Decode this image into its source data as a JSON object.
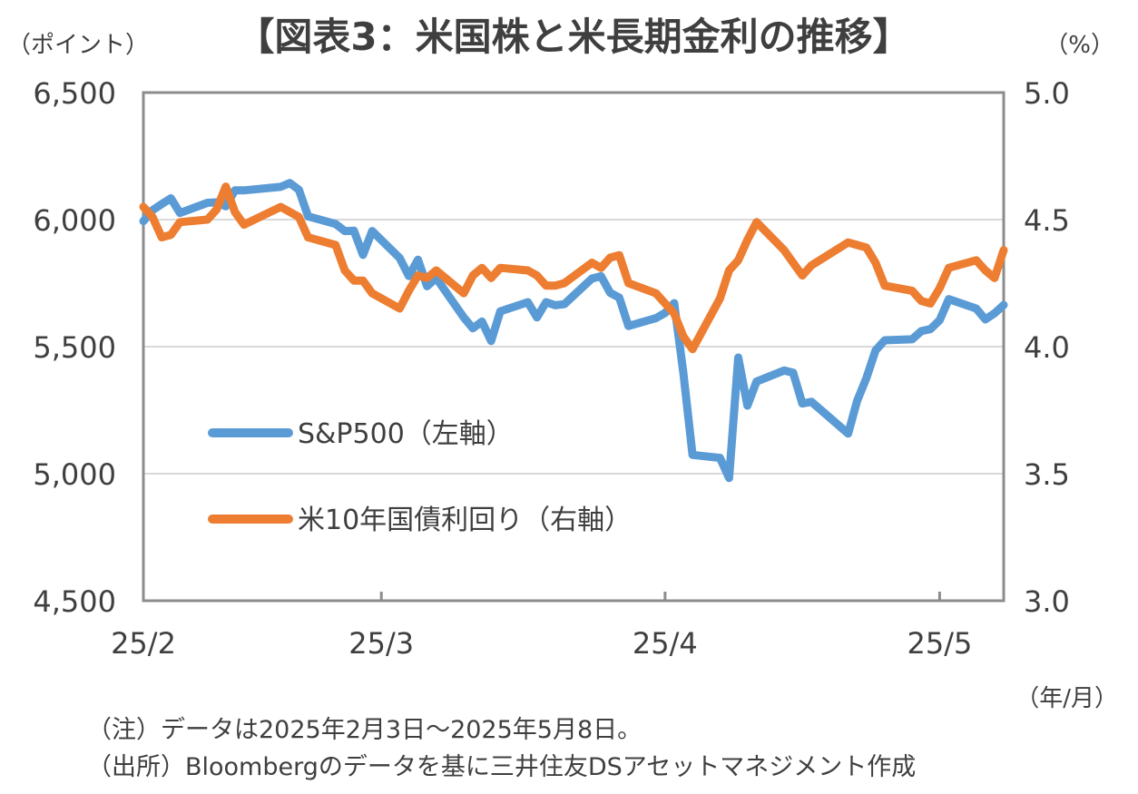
{
  "chart_data": {
    "type": "line",
    "title": "【図表3：米国株と米長期金利の推移】",
    "left_axis_unit": "（ポイント）",
    "right_axis_unit": "（%）",
    "x_unit": "（年/月）",
    "left_ylim": [
      4500,
      6500
    ],
    "right_ylim": [
      3.0,
      5.0
    ],
    "left_ticks": [
      "6,500",
      "6,000",
      "5,500",
      "5,000",
      "4,500"
    ],
    "right_ticks": [
      "5.0",
      "4.5",
      "4.0",
      "3.5",
      "3.0"
    ],
    "x_ticks": [
      "25/2",
      "25/3",
      "25/4",
      "25/5"
    ],
    "x_range": [
      "2025-02-03",
      "2025-05-08"
    ],
    "grid": "horizontal",
    "legend_position": "lower-left inside plot",
    "series": [
      {
        "name": "S&P500（左軸）",
        "axis": "left",
        "color": "#5b9bd5",
        "points": [
          [
            "2025-02-03",
            5994
          ],
          [
            "2025-02-04",
            6037
          ],
          [
            "2025-02-05",
            6061
          ],
          [
            "2025-02-06",
            6084
          ],
          [
            "2025-02-07",
            6026
          ],
          [
            "2025-02-10",
            6066
          ],
          [
            "2025-02-11",
            6068
          ],
          [
            "2025-02-12",
            6052
          ],
          [
            "2025-02-13",
            6115
          ],
          [
            "2025-02-14",
            6115
          ],
          [
            "2025-02-18",
            6129
          ],
          [
            "2025-02-19",
            6144
          ],
          [
            "2025-02-20",
            6117
          ],
          [
            "2025-02-21",
            6013
          ],
          [
            "2025-02-24",
            5983
          ],
          [
            "2025-02-25",
            5955
          ],
          [
            "2025-02-26",
            5956
          ],
          [
            "2025-02-27",
            5861
          ],
          [
            "2025-02-28",
            5955
          ],
          [
            "2025-03-03",
            5849
          ],
          [
            "2025-03-04",
            5778
          ],
          [
            "2025-03-05",
            5842
          ],
          [
            "2025-03-06",
            5738
          ],
          [
            "2025-03-07",
            5770
          ],
          [
            "2025-03-10",
            5615
          ],
          [
            "2025-03-11",
            5572
          ],
          [
            "2025-03-12",
            5599
          ],
          [
            "2025-03-13",
            5522
          ],
          [
            "2025-03-14",
            5639
          ],
          [
            "2025-03-17",
            5675
          ],
          [
            "2025-03-18",
            5615
          ],
          [
            "2025-03-19",
            5675
          ],
          [
            "2025-03-20",
            5663
          ],
          [
            "2025-03-21",
            5667
          ],
          [
            "2025-03-24",
            5768
          ],
          [
            "2025-03-25",
            5777
          ],
          [
            "2025-03-26",
            5712
          ],
          [
            "2025-03-27",
            5693
          ],
          [
            "2025-03-28",
            5581
          ],
          [
            "2025-03-31",
            5612
          ],
          [
            "2025-04-01",
            5633
          ],
          [
            "2025-04-02",
            5671
          ],
          [
            "2025-04-03",
            5397
          ],
          [
            "2025-04-04",
            5074
          ],
          [
            "2025-04-07",
            5062
          ],
          [
            "2025-04-08",
            4983
          ],
          [
            "2025-04-09",
            5457
          ],
          [
            "2025-04-10",
            5268
          ],
          [
            "2025-04-11",
            5363
          ],
          [
            "2025-04-14",
            5406
          ],
          [
            "2025-04-15",
            5397
          ],
          [
            "2025-04-16",
            5276
          ],
          [
            "2025-04-17",
            5283
          ],
          [
            "2025-04-21",
            5158
          ],
          [
            "2025-04-22",
            5288
          ],
          [
            "2025-04-23",
            5376
          ],
          [
            "2025-04-24",
            5485
          ],
          [
            "2025-04-25",
            5525
          ],
          [
            "2025-04-28",
            5529
          ],
          [
            "2025-04-29",
            5561
          ],
          [
            "2025-04-30",
            5569
          ],
          [
            "2025-05-01",
            5604
          ],
          [
            "2025-05-02",
            5687
          ],
          [
            "2025-05-05",
            5650
          ],
          [
            "2025-05-06",
            5607
          ],
          [
            "2025-05-07",
            5631
          ],
          [
            "2025-05-08",
            5664
          ]
        ]
      },
      {
        "name": "米10年国債利回り（右軸）",
        "axis": "right",
        "color": "#ed7d31",
        "points": [
          [
            "2025-02-03",
            4.55
          ],
          [
            "2025-02-04",
            4.51
          ],
          [
            "2025-02-05",
            4.43
          ],
          [
            "2025-02-06",
            4.44
          ],
          [
            "2025-02-07",
            4.49
          ],
          [
            "2025-02-10",
            4.5
          ],
          [
            "2025-02-11",
            4.54
          ],
          [
            "2025-02-12",
            4.63
          ],
          [
            "2025-02-13",
            4.53
          ],
          [
            "2025-02-14",
            4.48
          ],
          [
            "2025-02-18",
            4.55
          ],
          [
            "2025-02-19",
            4.53
          ],
          [
            "2025-02-20",
            4.51
          ],
          [
            "2025-02-21",
            4.43
          ],
          [
            "2025-02-24",
            4.4
          ],
          [
            "2025-02-25",
            4.3
          ],
          [
            "2025-02-26",
            4.26
          ],
          [
            "2025-02-27",
            4.26
          ],
          [
            "2025-02-28",
            4.21
          ],
          [
            "2025-03-03",
            4.15
          ],
          [
            "2025-03-04",
            4.22
          ],
          [
            "2025-03-05",
            4.28
          ],
          [
            "2025-03-06",
            4.27
          ],
          [
            "2025-03-07",
            4.3
          ],
          [
            "2025-03-10",
            4.21
          ],
          [
            "2025-03-11",
            4.28
          ],
          [
            "2025-03-12",
            4.31
          ],
          [
            "2025-03-13",
            4.27
          ],
          [
            "2025-03-14",
            4.31
          ],
          [
            "2025-03-17",
            4.3
          ],
          [
            "2025-03-18",
            4.28
          ],
          [
            "2025-03-19",
            4.24
          ],
          [
            "2025-03-20",
            4.24
          ],
          [
            "2025-03-21",
            4.25
          ],
          [
            "2025-03-24",
            4.33
          ],
          [
            "2025-03-25",
            4.31
          ],
          [
            "2025-03-26",
            4.35
          ],
          [
            "2025-03-27",
            4.36
          ],
          [
            "2025-03-28",
            4.25
          ],
          [
            "2025-03-31",
            4.21
          ],
          [
            "2025-04-01",
            4.17
          ],
          [
            "2025-04-02",
            4.13
          ],
          [
            "2025-04-03",
            4.04
          ],
          [
            "2025-04-04",
            3.99
          ],
          [
            "2025-04-07",
            4.19
          ],
          [
            "2025-04-08",
            4.3
          ],
          [
            "2025-04-09",
            4.34
          ],
          [
            "2025-04-10",
            4.42
          ],
          [
            "2025-04-11",
            4.49
          ],
          [
            "2025-04-14",
            4.38
          ],
          [
            "2025-04-15",
            4.33
          ],
          [
            "2025-04-16",
            4.28
          ],
          [
            "2025-04-17",
            4.32
          ],
          [
            "2025-04-21",
            4.41
          ],
          [
            "2025-04-22",
            4.4
          ],
          [
            "2025-04-23",
            4.39
          ],
          [
            "2025-04-24",
            4.33
          ],
          [
            "2025-04-25",
            4.24
          ],
          [
            "2025-04-28",
            4.22
          ],
          [
            "2025-04-29",
            4.18
          ],
          [
            "2025-04-30",
            4.17
          ],
          [
            "2025-05-01",
            4.23
          ],
          [
            "2025-05-02",
            4.31
          ],
          [
            "2025-05-05",
            4.34
          ],
          [
            "2025-05-06",
            4.3
          ],
          [
            "2025-05-07",
            4.27
          ],
          [
            "2025-05-08",
            4.38
          ]
        ]
      }
    ]
  },
  "notes": [
    "（注）データは2025年2月3日～2025年5月8日。",
    "（出所）Bloombergのデータを基に三井住友DSアセットマネジメント作成"
  ]
}
